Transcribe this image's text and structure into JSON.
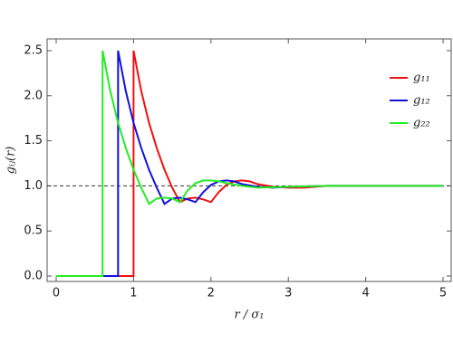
{
  "chart_data": {
    "type": "line",
    "xlabel": "r / σ₁",
    "ylabel": "gᵢⱼ(r)",
    "xlim": [
      -0.117,
      5.105
    ],
    "ylim": [
      -0.06,
      2.63
    ],
    "xticks": [
      0,
      1,
      2,
      3,
      4,
      5
    ],
    "yticks": [
      {
        "value": 0,
        "label": "0.0"
      },
      0.5,
      {
        "value": 1,
        "label": "1.0"
      },
      1.5,
      {
        "value": 2,
        "label": "2.0"
      },
      2.5
    ],
    "hline": 1,
    "grid": false,
    "legend": "upper-right",
    "series": [
      {
        "name": "g₁₁",
        "color": "#ee1111",
        "x": [
          0,
          1,
          1,
          1.1,
          1.2,
          1.3,
          1.4,
          1.5,
          1.6,
          1.7,
          1.8,
          1.9,
          2.0,
          2.1,
          2.2,
          2.3,
          2.4,
          2.5,
          2.6,
          2.8,
          3.0,
          3.2,
          3.5,
          4.0,
          5.0
        ],
        "values": [
          0,
          0,
          2.5,
          2.05,
          1.7,
          1.42,
          1.18,
          0.98,
          0.82,
          0.86,
          0.87,
          0.85,
          0.82,
          0.93,
          1.01,
          1.05,
          1.06,
          1.05,
          1.02,
          0.99,
          0.98,
          0.98,
          1.0,
          1.0,
          1.0
        ]
      },
      {
        "name": "g₁₂",
        "color": "#1111dd",
        "x": [
          0,
          0.8,
          0.8,
          0.9,
          1.0,
          1.1,
          1.2,
          1.3,
          1.4,
          1.5,
          1.6,
          1.7,
          1.8,
          1.9,
          2.0,
          2.1,
          2.2,
          2.3,
          2.4,
          2.6,
          2.8,
          3.0,
          3.5,
          5.0
        ],
        "values": [
          0,
          0,
          2.5,
          2.05,
          1.7,
          1.42,
          1.18,
          0.98,
          0.8,
          0.86,
          0.87,
          0.85,
          0.82,
          0.93,
          1.01,
          1.05,
          1.06,
          1.05,
          1.02,
          0.99,
          0.98,
          0.99,
          1.0,
          1.0
        ]
      },
      {
        "name": "g₂₂",
        "color": "#22ee22",
        "x": [
          0,
          0.6,
          0.6,
          0.7,
          0.8,
          0.9,
          1.0,
          1.1,
          1.2,
          1.3,
          1.4,
          1.5,
          1.6,
          1.7,
          1.8,
          1.9,
          2.0,
          2.1,
          2.2,
          2.4,
          2.6,
          3.0,
          3.5,
          5.0
        ],
        "values": [
          0,
          0,
          2.5,
          2.05,
          1.7,
          1.42,
          1.18,
          0.98,
          0.8,
          0.86,
          0.87,
          0.86,
          0.82,
          0.95,
          1.03,
          1.06,
          1.06,
          1.05,
          1.03,
          1.0,
          0.98,
          0.99,
          1.0,
          1.0
        ]
      }
    ]
  }
}
